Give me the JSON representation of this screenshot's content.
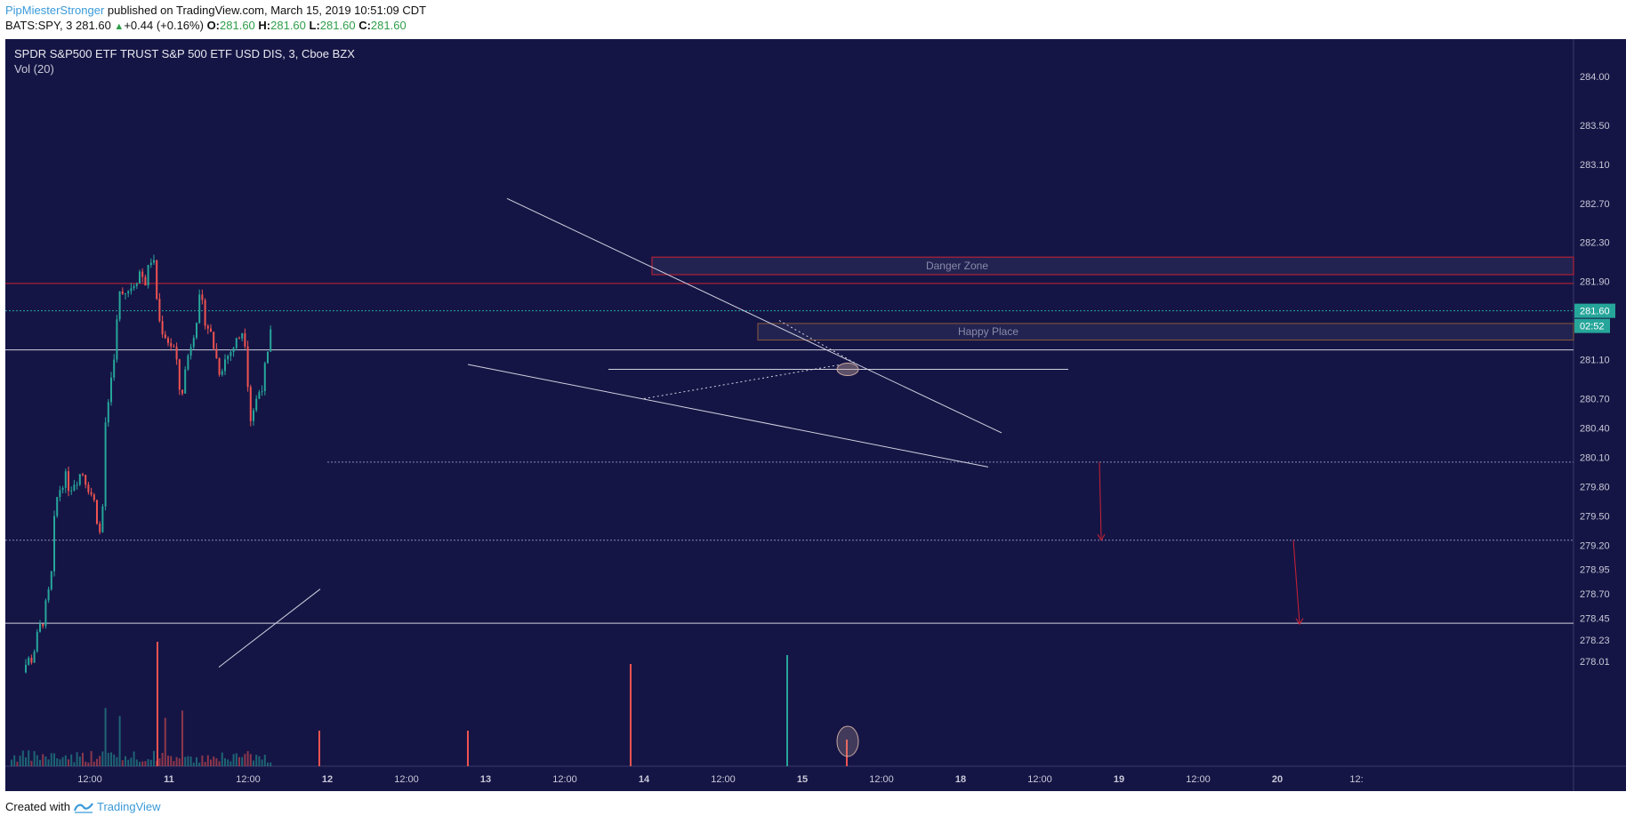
{
  "header": {
    "author": "PipMiesterStronger",
    "published": "published on TradingView.com, March 15, 2019 10:51:09 CDT",
    "symbol": "BATS:SPY, 3",
    "price": "281.60",
    "change": "+0.44 (+0.16%)",
    "o_label": "O:",
    "o_val": "281.60",
    "h_label": "H:",
    "h_val": "281.60",
    "l_label": "L:",
    "l_val": "281.60",
    "c_label": "C:",
    "c_val": "281.60"
  },
  "chart_title": "SPDR S&P500 ETF TRUST S&P 500 ETF USD DIS, 3, Cboe BZX",
  "vol_title": "Vol (20)",
  "footer": {
    "created": "Created with",
    "brand": "TradingView"
  },
  "colors": {
    "background": "#151545",
    "up": "#26a69a",
    "down": "#ef5350",
    "line": "#d0d0e0",
    "danger": "#cc2233",
    "happy": "#8a5a3a",
    "price_tag": "#26a69a"
  },
  "chart_data": {
    "type": "candlestick",
    "ylim": [
      278.01,
      284.2
    ],
    "y_ticks": [
      "284.00",
      "283.50",
      "283.10",
      "282.70",
      "282.30",
      "281.90",
      "281.60",
      "281.10",
      "280.70",
      "280.40",
      "280.10",
      "279.80",
      "279.50",
      "279.20",
      "278.95",
      "278.70",
      "278.45",
      "278.23",
      "278.01"
    ],
    "x_ticks": [
      "12:00",
      "11",
      "12:00",
      "12",
      "12:00",
      "13",
      "12:00",
      "14",
      "12:00",
      "15",
      "12:00",
      "18",
      "12:00",
      "19",
      "12:00",
      "20",
      "12:"
    ],
    "last_price": "281.60",
    "countdown": "02:52",
    "price_path": [
      [
        0.0,
        277.9
      ],
      [
        0.08,
        277.95
      ],
      [
        0.14,
        278.05
      ],
      [
        0.2,
        278.4
      ],
      [
        0.22,
        278.5
      ],
      [
        0.26,
        278.8
      ],
      [
        0.28,
        279.4
      ],
      [
        0.3,
        279.7
      ],
      [
        0.34,
        279.9
      ],
      [
        0.38,
        279.8
      ],
      [
        0.42,
        279.9
      ],
      [
        0.46,
        279.95
      ],
      [
        0.5,
        279.8
      ],
      [
        0.54,
        279.6
      ],
      [
        0.58,
        279.2
      ],
      [
        0.6,
        280.4
      ],
      [
        0.64,
        280.9
      ],
      [
        0.66,
        281.2
      ],
      [
        0.7,
        281.85
      ],
      [
        0.74,
        281.8
      ],
      [
        0.78,
        281.9
      ],
      [
        0.82,
        282.0
      ],
      [
        0.86,
        281.9
      ],
      [
        0.9,
        282.2
      ],
      [
        0.92,
        281.9
      ],
      [
        0.94,
        281.5
      ],
      [
        1.0,
        281.3
      ],
      [
        1.04,
        281.2
      ],
      [
        1.08,
        280.7
      ],
      [
        1.12,
        281.1
      ],
      [
        1.16,
        281.4
      ],
      [
        1.2,
        281.7
      ],
      [
        1.24,
        281.5
      ],
      [
        1.28,
        281.3
      ],
      [
        1.32,
        281.0
      ],
      [
        1.36,
        281.1
      ],
      [
        1.4,
        281.2
      ],
      [
        1.44,
        281.3
      ],
      [
        1.48,
        281.45
      ],
      [
        1.52,
        280.5
      ],
      [
        1.56,
        280.7
      ],
      [
        1.6,
        280.9
      ],
      [
        1.64,
        281.2
      ],
      [
        1.66,
        281.6
      ]
    ],
    "annotations": [
      {
        "label": "Danger Zone",
        "y1": 282.15,
        "y2": 281.97
      },
      {
        "label": "Happy Place",
        "y1": 281.47,
        "y2": 281.3
      }
    ]
  }
}
